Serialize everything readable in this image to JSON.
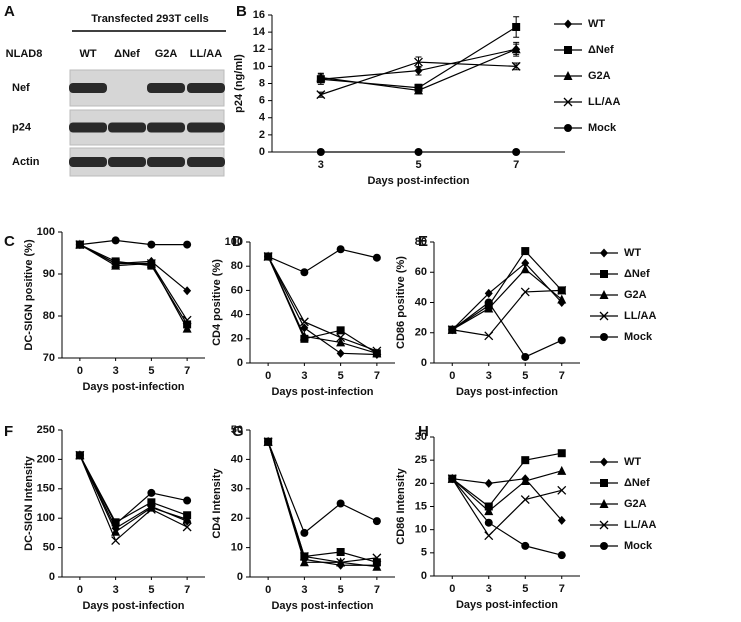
{
  "panel_a": {
    "label": "A",
    "header": "Transfected 293T cells",
    "lanes": [
      "NLAD8",
      "WT",
      "ΔNef",
      "G2A",
      "LL/AA"
    ],
    "rows": [
      "Nef",
      "p24",
      "Actin"
    ]
  },
  "chart_data": [
    {
      "type": "line",
      "label": "B",
      "ylabel": "p24 (ng/ml)",
      "xlabel": "Days post-infection",
      "categories": [
        "3",
        "5",
        "7"
      ],
      "ylim": [
        0,
        16
      ],
      "yticks": [
        0,
        2,
        4,
        6,
        8,
        10,
        12,
        14,
        16
      ],
      "color": "#000000",
      "legend": "right",
      "series": [
        {
          "name": "WT",
          "marker": "diamond",
          "values": [
            8.5,
            9.5,
            12
          ],
          "errors": [
            0.4,
            0.5,
            0.8
          ]
        },
        {
          "name": "ΔNef",
          "marker": "square",
          "values": [
            8.5,
            7.5,
            14.6
          ],
          "errors": [
            0.6,
            0.4,
            1.2
          ]
        },
        {
          "name": "G2A",
          "marker": "triangle",
          "values": [
            8.7,
            7.2,
            12
          ],
          "errors": [
            0.5,
            0.4,
            0.6
          ]
        },
        {
          "name": "LL/AA",
          "marker": "x",
          "values": [
            6.7,
            10.5,
            10
          ],
          "errors": [
            0.3,
            0.6,
            0.4
          ]
        },
        {
          "name": "Mock",
          "marker": "circle",
          "values": [
            0,
            0,
            0
          ]
        }
      ]
    },
    {
      "type": "line",
      "label": "C",
      "ylabel": "DC-SIGN positive (%)",
      "xlabel": "Days post-infection",
      "categories": [
        "0",
        "3",
        "5",
        "7"
      ],
      "ylim": [
        70,
        100
      ],
      "yticks": [
        70,
        80,
        90,
        100
      ],
      "color": "#000000",
      "series": [
        {
          "marker": "diamond",
          "values": [
            97,
            92.5,
            93,
            86
          ]
        },
        {
          "marker": "square",
          "values": [
            97,
            93,
            92,
            78
          ]
        },
        {
          "marker": "triangle",
          "values": [
            97,
            92,
            92.5,
            77
          ]
        },
        {
          "marker": "x",
          "values": [
            97,
            92.5,
            92.5,
            79
          ]
        },
        {
          "marker": "circle",
          "values": [
            97,
            98,
            97,
            97
          ]
        }
      ]
    },
    {
      "type": "line",
      "label": "D",
      "ylabel": "CD4 positive (%)",
      "xlabel": "Days post-infection",
      "categories": [
        "0",
        "3",
        "5",
        "7"
      ],
      "ylim": [
        0,
        100
      ],
      "yticks": [
        0,
        20,
        40,
        60,
        80,
        100
      ],
      "color": "#000000",
      "series": [
        {
          "marker": "diamond",
          "values": [
            88,
            29,
            8,
            7
          ]
        },
        {
          "marker": "square",
          "values": [
            88,
            20,
            27,
            8
          ]
        },
        {
          "marker": "triangle",
          "values": [
            88,
            22,
            17,
            8
          ]
        },
        {
          "marker": "x",
          "values": [
            88,
            34,
            21,
            10
          ]
        },
        {
          "marker": "circle",
          "values": [
            88,
            75,
            94,
            87
          ]
        }
      ]
    },
    {
      "type": "line",
      "label": "E",
      "ylabel": "CD86 positive (%)",
      "xlabel": "Days post-infection",
      "categories": [
        "0",
        "3",
        "5",
        "7"
      ],
      "ylim": [
        0,
        80
      ],
      "yticks": [
        0,
        20,
        40,
        60,
        80
      ],
      "color": "#000000",
      "legend": "right",
      "series": [
        {
          "name": "WT",
          "marker": "diamond",
          "values": [
            22,
            46,
            66,
            40
          ]
        },
        {
          "name": "ΔNef",
          "marker": "square",
          "values": [
            22,
            38,
            74,
            48
          ]
        },
        {
          "name": "G2A",
          "marker": "triangle",
          "values": [
            22,
            36,
            62,
            42
          ]
        },
        {
          "name": "LL/AA",
          "marker": "x",
          "values": [
            22,
            18,
            47,
            48
          ]
        },
        {
          "name": "Mock",
          "marker": "circle",
          "values": [
            22,
            40,
            4,
            15
          ]
        }
      ]
    },
    {
      "type": "line",
      "label": "F",
      "ylabel": "DC-SIGN Intensity",
      "xlabel": "Days post-infection",
      "categories": [
        "0",
        "3",
        "5",
        "7"
      ],
      "ylim": [
        0,
        250
      ],
      "yticks": [
        0,
        50,
        100,
        150,
        200,
        250
      ],
      "color": "#000000",
      "series": [
        {
          "marker": "diamond",
          "values": [
            207,
            83,
            120,
            95
          ]
        },
        {
          "marker": "square",
          "values": [
            207,
            93,
            127,
            105
          ]
        },
        {
          "marker": "triangle",
          "values": [
            207,
            77,
            118,
            98
          ]
        },
        {
          "marker": "x",
          "values": [
            207,
            62,
            115,
            85
          ]
        },
        {
          "marker": "circle",
          "values": [
            207,
            90,
            143,
            130
          ]
        }
      ]
    },
    {
      "type": "line",
      "label": "G",
      "ylabel": "CD4 Intensity",
      "xlabel": "Days post-infection",
      "categories": [
        "0",
        "3",
        "5",
        "7"
      ],
      "ylim": [
        0,
        50
      ],
      "yticks": [
        0,
        10,
        20,
        30,
        40,
        50
      ],
      "color": "#000000",
      "series": [
        {
          "marker": "diamond",
          "values": [
            46,
            6,
            4,
            4
          ]
        },
        {
          "marker": "square",
          "values": [
            46,
            7,
            8.5,
            5
          ]
        },
        {
          "marker": "triangle",
          "values": [
            46,
            5,
            5,
            3.5
          ]
        },
        {
          "marker": "x",
          "values": [
            46,
            7,
            5,
            6.5
          ]
        },
        {
          "marker": "circle",
          "values": [
            46,
            15,
            25,
            19
          ]
        }
      ]
    },
    {
      "type": "line",
      "label": "H",
      "ylabel": "CD86 Intensity",
      "xlabel": "Days post-infection",
      "categories": [
        "0",
        "3",
        "5",
        "7"
      ],
      "ylim": [
        0,
        30
      ],
      "yticks": [
        0,
        5,
        10,
        15,
        20,
        25,
        30
      ],
      "color": "#000000",
      "legend": "right",
      "series": [
        {
          "name": "WT",
          "marker": "diamond",
          "values": [
            21,
            20,
            21,
            12
          ]
        },
        {
          "name": "ΔNef",
          "marker": "square",
          "values": [
            21,
            15,
            25,
            26.5
          ]
        },
        {
          "name": "G2A",
          "marker": "triangle",
          "values": [
            21,
            14,
            20.5,
            22.7
          ]
        },
        {
          "name": "LL/AA",
          "marker": "x",
          "values": [
            21,
            8.7,
            16.5,
            18.5
          ]
        },
        {
          "name": "Mock",
          "marker": "circle",
          "values": [
            21,
            11.5,
            6.5,
            4.5
          ]
        }
      ]
    }
  ]
}
